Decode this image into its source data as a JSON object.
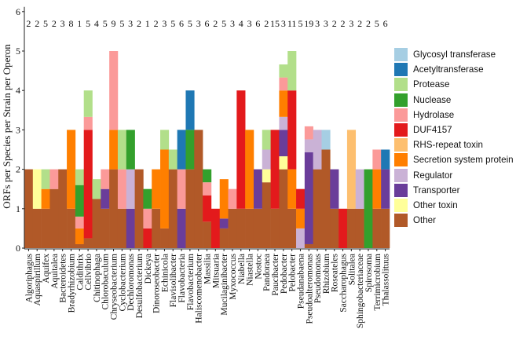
{
  "chart_data": {
    "type": "bar",
    "stacked": true,
    "ylabel": "ORFs per Species per Strain per Operon",
    "xlabel": "",
    "ylim": [
      0,
      6
    ],
    "yticks": [
      0,
      1,
      2,
      3,
      4,
      5,
      6
    ],
    "grid": false,
    "legend_position": "right",
    "categories": [
      "Algoriphagus",
      "Aquaspirillum",
      "Aquifex",
      "Aquitalea",
      "Bacteroidetes",
      "Bradyrhizobium",
      "Caldithrix",
      "Cellvibrio",
      "Chitinophaga",
      "Chlorobaculum",
      "Chryseobacterium",
      "Cyclobacterium",
      "Dechloromonas",
      "Desulfobacterium",
      "Dickeya",
      "Dinoroseobacter",
      "Echinicola",
      "Flavisolibacter",
      "Flavobacteria",
      "Flavobacterium",
      "Haliscomenobacter",
      "Massilia",
      "Mitsuaria",
      "Mucilaginibacter",
      "Myxococcus",
      "Niabella",
      "Niastella",
      "Nostoc",
      "Pandoraea",
      "Paucibacter",
      "Pedobacter",
      "Pelobacter",
      "Pseudanabaena",
      "Pseudoalteromonas",
      "Pseudomonas",
      "Rhizobium",
      "Roseateles",
      "Saccharophagus",
      "Solitalea",
      "Sphingobacteriaceae",
      "Spirosoma",
      "Terrimicrobium",
      "Thalassolituus"
    ],
    "top_labels": [
      "2",
      "2",
      "5",
      "2",
      "3",
      "8",
      "1",
      "5",
      "4",
      "5",
      "9",
      "5",
      "3",
      "2",
      "1",
      "2",
      "3",
      "5",
      "6",
      "5",
      "3",
      "6",
      "2",
      "5",
      "3",
      "4",
      "3",
      "6",
      "2",
      "15",
      "3",
      "11",
      "5",
      "19",
      "3",
      "3",
      "2",
      "2",
      "3",
      "2",
      "2",
      "5",
      "6"
    ],
    "series": [
      {
        "name": "Glycosyl transferase",
        "color": "#a6cee3",
        "values": [
          0,
          0,
          0,
          0,
          0,
          0,
          0,
          0,
          0,
          0,
          0,
          0,
          0,
          0,
          0,
          0,
          0,
          0,
          0,
          0,
          0,
          0,
          0,
          0,
          0,
          0,
          0,
          0,
          0,
          0,
          0,
          0,
          0,
          0,
          0,
          0.5,
          0,
          0,
          0,
          0,
          0,
          0,
          0
        ]
      },
      {
        "name": "Acetyltransferase",
        "color": "#1f78b4",
        "values": [
          0,
          0,
          0,
          0,
          0,
          0,
          0,
          0,
          0,
          0,
          0,
          0,
          0,
          0,
          0,
          0,
          0,
          0,
          1,
          1,
          0,
          0,
          0,
          0,
          0,
          0,
          0,
          0,
          0,
          0,
          0,
          0,
          0,
          0,
          0,
          0,
          0,
          0,
          0,
          0,
          0,
          0,
          0.5
        ]
      },
      {
        "name": "Protease",
        "color": "#b2df8a",
        "values": [
          0,
          0,
          0.5,
          0,
          0,
          0,
          0.4,
          0.67,
          0.5,
          0,
          0,
          1,
          0,
          0,
          0,
          0,
          0.5,
          0.5,
          0,
          0,
          0,
          0,
          0,
          0,
          0,
          0,
          0,
          0,
          0.5,
          0,
          0.33,
          1,
          0,
          0,
          0,
          0,
          0,
          0,
          0,
          0,
          0,
          0,
          0
        ]
      },
      {
        "name": "Nuclease",
        "color": "#33a02c",
        "values": [
          0,
          0,
          0,
          0,
          0,
          0,
          0.8,
          0,
          0,
          0,
          0,
          0,
          1,
          0,
          0.5,
          0,
          0,
          0,
          0,
          1,
          0,
          0.33,
          0,
          0,
          0,
          0,
          0,
          0,
          0,
          0,
          0,
          0,
          0,
          0,
          0,
          0,
          0,
          0,
          0,
          0,
          2,
          0,
          0
        ]
      },
      {
        "name": "Hydrolase",
        "color": "#fb9a99",
        "values": [
          0,
          0,
          0,
          0.5,
          0,
          0,
          0.3,
          0.33,
          0,
          0.5,
          2,
          1,
          0,
          0,
          0.5,
          0,
          0,
          0,
          1,
          0,
          0,
          0.33,
          0,
          0,
          0.5,
          0,
          0,
          0,
          0,
          0,
          0.33,
          0,
          0,
          0.33,
          0,
          0,
          0,
          0,
          0,
          0,
          0,
          0.5,
          0
        ]
      },
      {
        "name": "DUF4157",
        "color": "#e31a1c",
        "values": [
          0,
          0,
          0,
          0,
          0,
          0,
          0,
          2.75,
          0,
          0,
          0,
          0,
          0,
          0,
          0.5,
          0,
          0,
          0,
          0,
          0,
          0,
          0.67,
          1,
          0,
          0,
          3,
          0,
          0,
          0,
          2,
          0,
          2,
          0.5,
          0,
          0,
          0,
          0,
          1,
          0,
          0,
          0,
          0,
          0
        ]
      },
      {
        "name": "RHS-repeat toxin",
        "color": "#fdbf6f",
        "values": [
          0,
          0,
          0,
          0,
          0,
          0,
          0,
          0,
          0,
          0,
          0,
          0,
          0,
          0,
          0,
          0,
          0,
          0,
          0,
          0,
          0,
          0,
          0,
          0,
          0,
          0,
          0,
          0,
          0,
          0,
          0,
          0,
          0,
          0,
          0,
          0,
          0,
          0,
          2,
          0,
          0,
          0,
          0
        ]
      },
      {
        "name": "Secretion system protein",
        "color": "#ff7f00",
        "values": [
          0,
          0,
          0.5,
          0,
          0,
          2,
          0.4,
          0,
          0,
          0,
          1,
          0,
          0,
          0,
          0,
          1,
          2,
          0,
          0,
          0,
          0,
          0,
          0,
          1,
          0,
          0,
          2,
          0,
          0,
          0,
          0.67,
          1,
          0.5,
          0,
          0,
          0,
          0,
          0,
          0,
          0,
          0,
          1,
          0
        ]
      },
      {
        "name": "Regulator",
        "color": "#cab2d6",
        "values": [
          0,
          0,
          0,
          0,
          0,
          0,
          0,
          0,
          0,
          0,
          0,
          0,
          1,
          0,
          0,
          0,
          0,
          0,
          0,
          0,
          0,
          0,
          0,
          0,
          0,
          0,
          0,
          0,
          0.5,
          0,
          0.33,
          0,
          0.5,
          0.33,
          1,
          0,
          0,
          0,
          0,
          1,
          0,
          0,
          0
        ]
      },
      {
        "name": "Transporter",
        "color": "#6a3d9a",
        "values": [
          0,
          0,
          0,
          0,
          0,
          0,
          0,
          0,
          0,
          0.5,
          0,
          0,
          1,
          0,
          0,
          0,
          0,
          0,
          1,
          0,
          0,
          0,
          0,
          0.25,
          0,
          0,
          0,
          1,
          0,
          0,
          0.67,
          0,
          0,
          2.33,
          0,
          0,
          1,
          0,
          0,
          0,
          0,
          0,
          1
        ]
      },
      {
        "name": "Other toxin",
        "color": "#ffff99",
        "values": [
          0,
          1,
          0,
          0,
          0,
          0,
          0,
          0,
          0,
          0,
          0,
          0,
          0,
          0,
          0,
          0,
          0,
          0,
          0,
          0,
          0,
          0,
          0,
          0,
          0,
          0,
          0,
          0,
          0.33,
          0,
          0.33,
          0,
          0,
          0,
          0,
          0,
          0,
          0,
          0,
          0,
          0,
          0,
          0
        ]
      },
      {
        "name": "Other",
        "color": "#b15928",
        "values": [
          2,
          1,
          1,
          1.5,
          2,
          1,
          0.1,
          0.25,
          1.25,
          1,
          2,
          1,
          0,
          2,
          0,
          1,
          0.5,
          2,
          0,
          2,
          3,
          0.67,
          0,
          0.5,
          1,
          1,
          1,
          1,
          1.67,
          1,
          2,
          1,
          0,
          0.1,
          2,
          2.5,
          1,
          0,
          1,
          1,
          0,
          1,
          1
        ]
      }
    ]
  }
}
